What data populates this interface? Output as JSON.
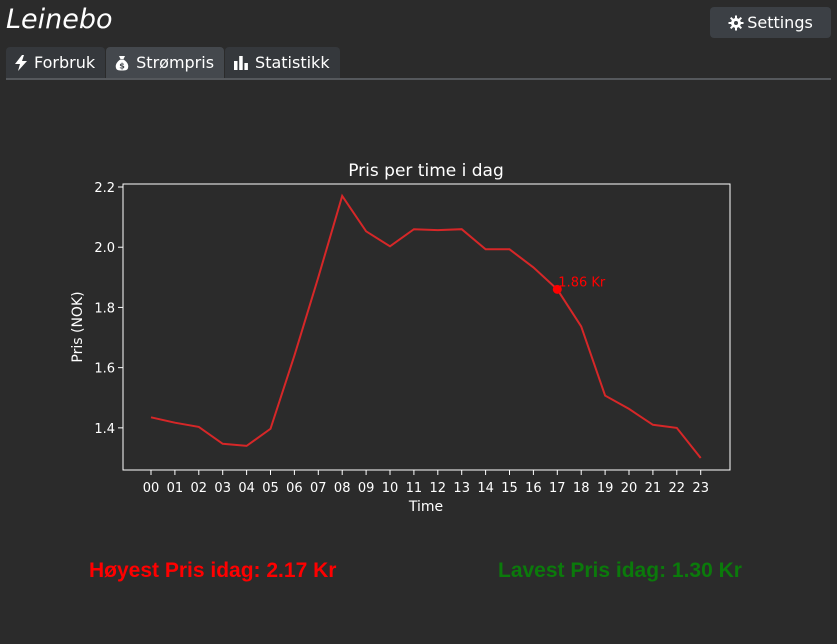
{
  "app": {
    "logo_text": "Leinebo"
  },
  "header": {
    "settings_label": "Settings"
  },
  "tabs": [
    {
      "label": "Forbruk",
      "icon": "bolt-icon",
      "active": false
    },
    {
      "label": "Strømpris",
      "icon": "money-bag-icon",
      "active": true
    },
    {
      "label": "Statistikk",
      "icon": "bar-chart-icon",
      "active": false
    }
  ],
  "stats": {
    "highest_label": "Høyest Pris idag: 2.17 Kr",
    "lowest_label": "Lavest Pris idag: 1.30 Kr"
  },
  "colors": {
    "background": "#2b2b2b",
    "line": "#d62728",
    "marker": "#ff0000",
    "highest": "#ff0000",
    "lowest": "#0b7a0b"
  },
  "chart_data": {
    "type": "line",
    "title": "Pris per time i dag",
    "xlabel": "Time",
    "ylabel": "Pris (NOK)",
    "categories": [
      "00",
      "01",
      "02",
      "03",
      "04",
      "05",
      "06",
      "07",
      "08",
      "09",
      "10",
      "11",
      "12",
      "13",
      "14",
      "15",
      "16",
      "17",
      "18",
      "19",
      "20",
      "21",
      "22",
      "23"
    ],
    "series": [
      {
        "values": [
          1.435,
          1.417,
          1.403,
          1.347,
          1.34,
          1.397,
          1.64,
          1.9,
          2.17,
          2.053,
          2.003,
          2.06,
          2.057,
          2.06,
          1.993,
          1.993,
          1.933,
          1.86,
          1.737,
          1.507,
          1.463,
          1.41,
          1.4,
          1.3
        ]
      }
    ],
    "ylim": [
      1.26,
      2.21
    ],
    "yticks": [
      "1.4",
      "1.6",
      "1.8",
      "2.0",
      "2.2"
    ],
    "ytick_values": [
      1.4,
      1.6,
      1.8,
      2.0,
      2.2
    ],
    "annotation": {
      "index": 17,
      "value": 1.86,
      "label": "1.86 Kr"
    },
    "grid": false
  }
}
